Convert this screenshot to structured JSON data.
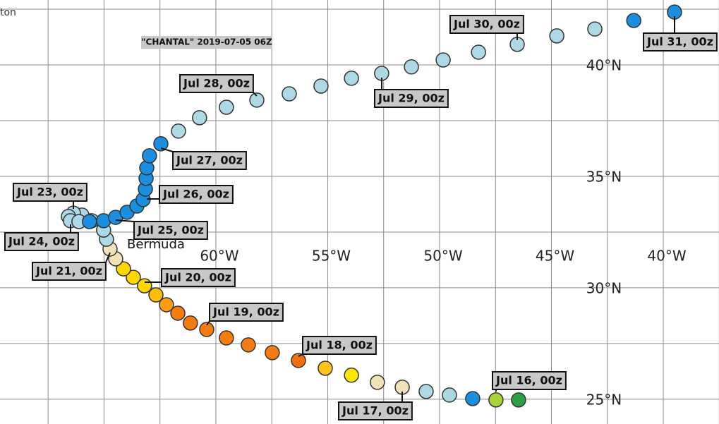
{
  "map": {
    "corner_text": "ton",
    "title": "\"CHANTAL\" 2019-07-05 06Z",
    "place_label": "Bermuda",
    "xlim": [
      -69.65,
      -37.51
    ],
    "ylim": [
      23.89,
      42.91
    ],
    "xticks": [
      {
        "value": -60,
        "label": "60°W"
      },
      {
        "value": -55,
        "label": "55°W"
      },
      {
        "value": -50,
        "label": "50°W"
      },
      {
        "value": -45,
        "label": "45°W"
      },
      {
        "value": -40,
        "label": "40°W"
      }
    ],
    "yticks": [
      {
        "value": 25,
        "label": "25°N"
      },
      {
        "value": 30,
        "label": "30°N"
      },
      {
        "value": 35,
        "label": "35°N"
      },
      {
        "value": 40,
        "label": "40°N"
      }
    ],
    "xgrid": [
      -67.5,
      -65,
      -62.5,
      -57.5,
      -52.5,
      -47.5,
      -42.5,
      -37.5
    ],
    "ygrid": [
      27.5,
      32.5,
      37.5,
      42.5
    ],
    "track": {
      "lon": [
        -46.47,
        -47.48,
        -48.52,
        -49.56,
        -50.6,
        -51.67,
        -52.78,
        -53.94,
        -55.11,
        -56.31,
        -57.48,
        -58.55,
        -59.53,
        -60.41,
        -61.14,
        -61.7,
        -62.21,
        -62.68,
        -63.19,
        -63.69,
        -64.13,
        -64.48,
        -64.73,
        -64.89,
        -65.02,
        -65.55,
        -65.99,
        -66.37,
        -66.59,
        -66.5,
        -66.12,
        -65.65,
        -65.02,
        -64.48,
        -63.97,
        -63.53,
        -63.25,
        -63.15,
        -63.12,
        -63.09,
        -62.97,
        -62.46,
        -61.67,
        -60.73,
        -59.53,
        -58.17,
        -56.72,
        -55.3,
        -53.94,
        -52.59,
        -51.26,
        -49.84,
        -48.26,
        -46.53,
        -44.76,
        -43.06,
        -41.32,
        -39.5
      ],
      "lat": [
        24.97,
        24.97,
        25.03,
        25.19,
        25.35,
        25.54,
        25.76,
        26.08,
        26.39,
        26.74,
        27.09,
        27.44,
        27.75,
        28.13,
        28.42,
        28.86,
        29.24,
        29.68,
        30.09,
        30.47,
        30.85,
        31.3,
        31.74,
        32.18,
        32.59,
        33.01,
        33.26,
        33.35,
        33.2,
        33.01,
        32.97,
        32.97,
        33.01,
        33.16,
        33.39,
        33.67,
        33.96,
        34.43,
        34.91,
        35.38,
        35.92,
        36.46,
        37.03,
        37.63,
        38.1,
        38.42,
        38.7,
        39.05,
        39.4,
        39.62,
        39.91,
        40.22,
        40.57,
        40.92,
        41.3,
        41.61,
        41.99,
        42.37
      ],
      "colors": [
        "#2e9e44",
        "#a8d43a",
        "#1a8fe0",
        "#add8e6",
        "#add8e6",
        "#f2e2b8",
        "#f2e2b8",
        "#ffe600",
        "#ffc41a",
        "#f07010",
        "#f57c0e",
        "#f57c0e",
        "#f57c0e",
        "#f57c0e",
        "#f57c0e",
        "#f57c0e",
        "#ff9a14",
        "#ffbf00",
        "#ffd700",
        "#ffd700",
        "#ffd700",
        "#f2e2b8",
        "#f2e2b8",
        "#add8e6",
        "#add8e6",
        "#add8e6",
        "#add8e6",
        "#add8e6",
        "#add8e6",
        "#add8e6",
        "#add8e6",
        "#1a8fe0",
        "#1a8fe0",
        "#1a8fe0",
        "#1a8fe0",
        "#1a8fe0",
        "#1a8fe0",
        "#1a8fe0",
        "#1a8fe0",
        "#1a8fe0",
        "#1a8fe0",
        "#1a8fe0",
        "#add8e6",
        "#add8e6",
        "#add8e6",
        "#add8e6",
        "#add8e6",
        "#add8e6",
        "#add8e6",
        "#add8e6",
        "#add8e6",
        "#add8e6",
        "#add8e6",
        "#add8e6",
        "#add8e6",
        "#add8e6",
        "#1a8fe0",
        "#1a8fe0"
      ]
    },
    "date_labels": [
      "Jul 16, 00z",
      "Jul 17, 00z",
      "Jul 18, 00z",
      "Jul 19, 00z",
      "Jul 20, 00z",
      "Jul 21, 00z",
      "Jul 23, 00z",
      "Jul 24, 00z",
      "Jul 25, 00z",
      "Jul 26, 00z",
      "Jul 27, 00z",
      "Jul 28, 00z",
      "Jul 29, 00z",
      "Jul 30, 00z",
      "Jul 31, 00z"
    ]
  }
}
